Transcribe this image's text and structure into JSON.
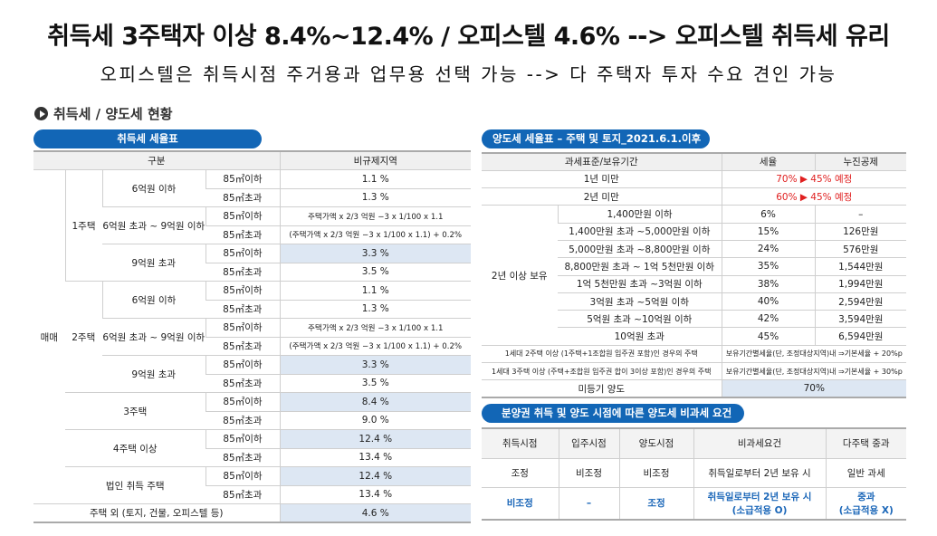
{
  "headline": "취득세 3주택자 이상 8.4%~12.4% / 오피스텔 4.6% --> 오피스텔 취득세 유리",
  "subline": "오피스텔은 취득시점 주거용과 업무용 선택 가능 --> 다 주택자 투자 수요 견인 가능",
  "section_title": "취득세 / 양도세 현황",
  "colors": {
    "pill": "#1266b6",
    "highlight": "#dde7f3",
    "red": "#e02020",
    "blue": "#1a66b8"
  },
  "acq": {
    "pill": "취득세 세율표",
    "rows": [
      [
        {
          "t": "구분",
          "cs": 4
        },
        {
          "t": "비규제지역"
        }
      ],
      [
        {
          "t": "매매",
          "rs": 18
        },
        {
          "t": "1주택",
          "rs": 6
        },
        {
          "t": "6억원 이하",
          "rs": 2
        },
        {
          "t": "85㎡이하"
        },
        {
          "t": "1.1 %"
        }
      ],
      [
        {
          "t": "85㎡초과"
        },
        {
          "t": "1.3 %"
        }
      ],
      [
        {
          "t": "6억원 초과 ~ 9억원 이하",
          "rs": 2
        },
        {
          "t": "85㎡이하"
        },
        {
          "t": "주택가액 x 2/3 억원 −3 x 1/100 x 1.1",
          "c": "fm"
        }
      ],
      [
        {
          "t": "85㎡초과"
        },
        {
          "t": "(주택가액 x 2/3 억원 −3 x 1/100 x 1.1) + 0.2%",
          "c": "fm"
        }
      ],
      [
        {
          "t": "9억원 초과",
          "rs": 2
        },
        {
          "t": "85㎡이하"
        },
        {
          "t": "3.3 %",
          "c": "hl"
        }
      ],
      [
        {
          "t": "85㎡초과"
        },
        {
          "t": "3.5 %"
        }
      ],
      [
        {
          "t": "2주택",
          "rs": 6
        },
        {
          "t": "6억원 이하",
          "rs": 2
        },
        {
          "t": "85㎡이하"
        },
        {
          "t": "1.1 %"
        }
      ],
      [
        {
          "t": "85㎡초과"
        },
        {
          "t": "1.3 %"
        }
      ],
      [
        {
          "t": "6억원 초과 ~ 9억원 이하",
          "rs": 2
        },
        {
          "t": "85㎡이하"
        },
        {
          "t": "주택가액 x 2/3 억원 −3 x 1/100 x 1.1",
          "c": "fm"
        }
      ],
      [
        {
          "t": "85㎡초과"
        },
        {
          "t": "(주택가액 x 2/3 억원 −3 x 1/100 x 1.1) + 0.2%",
          "c": "fm"
        }
      ],
      [
        {
          "t": "9억원 초과",
          "rs": 2
        },
        {
          "t": "85㎡이하"
        },
        {
          "t": "3.3 %",
          "c": "hl"
        }
      ],
      [
        {
          "t": "85㎡초과"
        },
        {
          "t": "3.5 %"
        }
      ],
      [
        {
          "t": "3주택",
          "cs": 2,
          "rs": 2
        },
        {
          "t": "85㎡이하"
        },
        {
          "t": "8.4 %",
          "c": "hl"
        }
      ],
      [
        {
          "t": "85㎡초과"
        },
        {
          "t": "9.0 %"
        }
      ],
      [
        {
          "t": "4주택 이상",
          "cs": 2,
          "rs": 2
        },
        {
          "t": "85㎡이하"
        },
        {
          "t": "12.4 %",
          "c": "hl"
        }
      ],
      [
        {
          "t": "85㎡초과"
        },
        {
          "t": "13.4 %"
        }
      ],
      [
        {
          "t": "법인 취득 주택",
          "cs": 2,
          "rs": 2
        },
        {
          "t": "85㎡이하"
        },
        {
          "t": "12.4 %",
          "c": "hl"
        }
      ],
      [
        {
          "t": "85㎡초과"
        },
        {
          "t": "13.4 %"
        }
      ],
      [
        {
          "t": "주택 외 (토지, 건물, 오피스텔 등)",
          "cs": 4
        },
        {
          "t": "4.6 %",
          "c": "hl"
        }
      ]
    ]
  },
  "cg": {
    "pill": "양도세 세율표 – 주택 및 토지_2021.6.1.이후",
    "rows": [
      [
        {
          "t": "과세표준/보유기간",
          "cs": 2
        },
        {
          "t": "세율"
        },
        {
          "t": "누진공제"
        }
      ],
      [
        {
          "t": "1년 미만",
          "cs": 2
        },
        {
          "t": "70% ▶ 45% 예정",
          "cs": 2,
          "c": "red"
        }
      ],
      [
        {
          "t": "2년 미만",
          "cs": 2
        },
        {
          "t": "60% ▶ 45% 예정",
          "cs": 2,
          "c": "red"
        }
      ],
      [
        {
          "t": "2년 이상 보유",
          "rs": 8
        },
        {
          "t": "1,400만원 이하"
        },
        {
          "t": "6%"
        },
        {
          "t": "–"
        }
      ],
      [
        {
          "t": "1,400만원 초과 ~5,000만원 이하"
        },
        {
          "t": "15%"
        },
        {
          "t": "126만원"
        }
      ],
      [
        {
          "t": "5,000만원 초과 ~8,800만원 이하"
        },
        {
          "t": "24%"
        },
        {
          "t": "576만원"
        }
      ],
      [
        {
          "t": "8,800만원 초과 ~ 1억 5천만원 이하"
        },
        {
          "t": "35%"
        },
        {
          "t": "1,544만원"
        }
      ],
      [
        {
          "t": "1억 5천만원 초과 ~3억원 이하"
        },
        {
          "t": "38%"
        },
        {
          "t": "1,994만원"
        }
      ],
      [
        {
          "t": "3억원 초과 ~5억원 이하"
        },
        {
          "t": "40%"
        },
        {
          "t": "2,594만원"
        }
      ],
      [
        {
          "t": "5억원 초과 ~10억원 이하"
        },
        {
          "t": "42%"
        },
        {
          "t": "3,594만원"
        }
      ],
      [
        {
          "t": "10억원 초과"
        },
        {
          "t": "45%"
        },
        {
          "t": "6,594만원"
        }
      ],
      [
        {
          "t": "1세대 2주택 이상 (1주택+1조합원 입주권 포함)인 경우의 주택",
          "cs": 2,
          "c": "sm"
        },
        {
          "t": "보유기간별세율(단, 조정대상지역)내 ⇒기본세율 + 20%p",
          "cs": 2,
          "c": "sm"
        }
      ],
      [
        {
          "t": "1세대 3주택 이상 (주택+조합원 입주권 합이 3이상 포함)인 경우의 주택",
          "cs": 2,
          "c": "sm"
        },
        {
          "t": "보유기간별세율(단, 조정대상지역)내 ⇒기본세율 + 30%p",
          "cs": 2,
          "c": "sm"
        }
      ],
      [
        {
          "t": "미등기 양도",
          "cs": 2
        },
        {
          "t": "70%",
          "cs": 2,
          "c": "hl"
        }
      ]
    ]
  },
  "pre": {
    "pill": "분양권 취득 및 양도 시점에 따른 양도세 비과세 요건",
    "rows": [
      [
        {
          "t": "취득시점"
        },
        {
          "t": "입주시점"
        },
        {
          "t": "양도시점"
        },
        {
          "t": "비과세요건"
        },
        {
          "t": "다주택 중과"
        }
      ],
      [
        {
          "t": "조정"
        },
        {
          "t": "비조정"
        },
        {
          "t": "비조정"
        },
        {
          "t": "취득일로부터 2년 보유 시"
        },
        {
          "t": "일반 과세"
        }
      ],
      [
        {
          "t": "비조정",
          "c": "blue"
        },
        {
          "t": "–",
          "c": "blue"
        },
        {
          "t": "조정",
          "c": "blue"
        },
        {
          "t": "취득일로부터 2년 보유 시\n(소급적용 O)",
          "c": "blue"
        },
        {
          "t": "중과\n(소급적용 X)",
          "c": "blue"
        }
      ]
    ]
  }
}
